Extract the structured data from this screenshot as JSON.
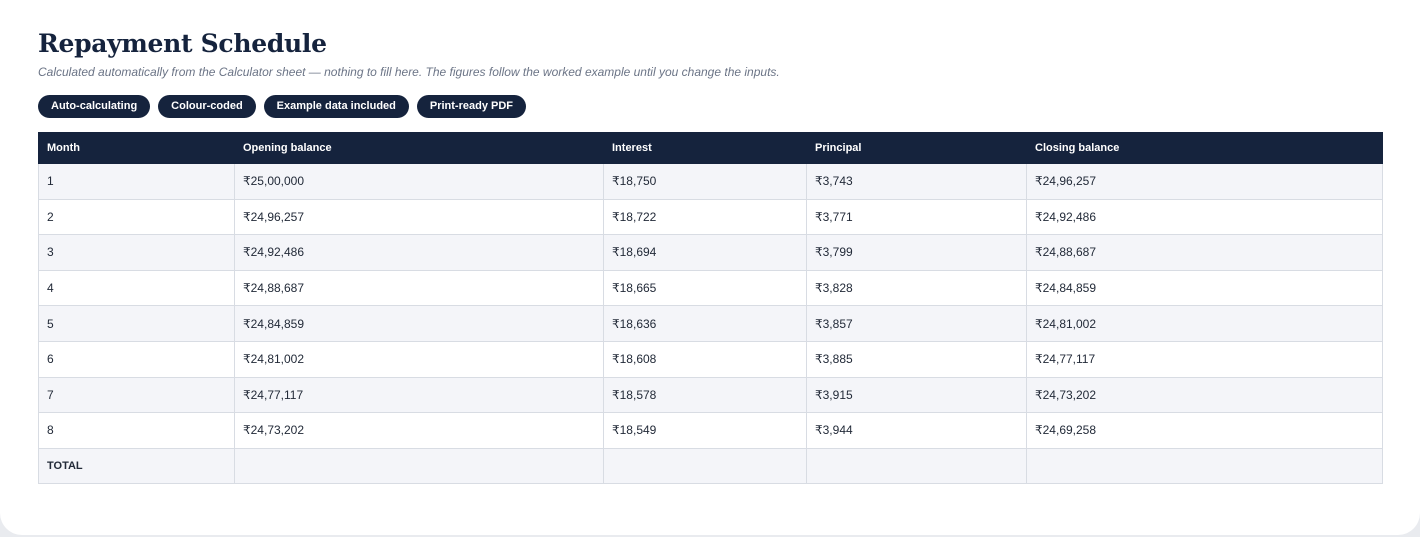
{
  "header": {
    "title": "Repayment Schedule",
    "subtitle": "Calculated automatically from the Calculator sheet — nothing to fill here. The figures follow the worked example until you change the inputs."
  },
  "badges": [
    "Auto-calculating",
    "Colour-coded",
    "Example data included",
    "Print-ready PDF"
  ],
  "table": {
    "columns": [
      "Month",
      "Opening balance",
      "Interest",
      "Principal",
      "Closing balance"
    ],
    "rows": [
      [
        "1",
        "₹25,00,000",
        "₹18,750",
        "₹3,743",
        "₹24,96,257"
      ],
      [
        "2",
        "₹24,96,257",
        "₹18,722",
        "₹3,771",
        "₹24,92,486"
      ],
      [
        "3",
        "₹24,92,486",
        "₹18,694",
        "₹3,799",
        "₹24,88,687"
      ],
      [
        "4",
        "₹24,88,687",
        "₹18,665",
        "₹3,828",
        "₹24,84,859"
      ],
      [
        "5",
        "₹24,84,859",
        "₹18,636",
        "₹3,857",
        "₹24,81,002"
      ],
      [
        "6",
        "₹24,81,002",
        "₹18,608",
        "₹3,885",
        "₹24,77,117"
      ],
      [
        "7",
        "₹24,77,117",
        "₹18,578",
        "₹3,915",
        "₹24,73,202"
      ],
      [
        "8",
        "₹24,73,202",
        "₹18,549",
        "₹3,944",
        "₹24,69,258"
      ]
    ],
    "total_label": "TOTAL"
  },
  "colors": {
    "navy": "#15233d",
    "row_stripe": "#f4f5f9",
    "border": "#d8dce3"
  }
}
